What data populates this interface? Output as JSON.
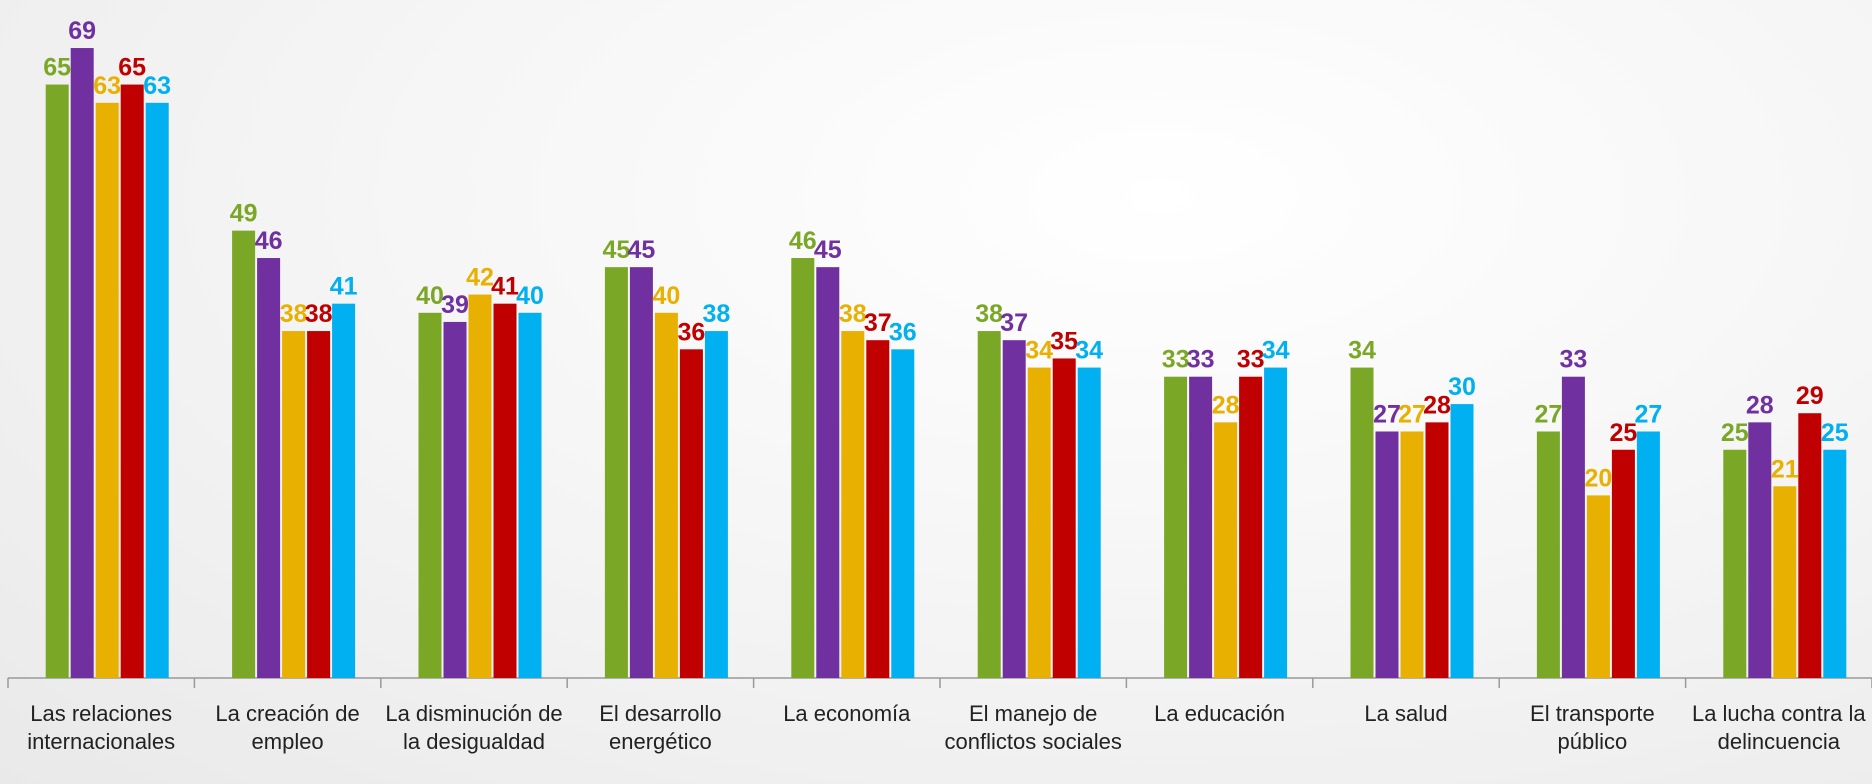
{
  "chart_data": {
    "type": "bar",
    "categories": [
      "Las relaciones internacionales",
      "La creación de empleo",
      "La disminución de la desigualdad",
      "El desarrollo energético",
      "La economía",
      "El manejo de conflictos sociales",
      "La educación",
      "La salud",
      "El transporte público",
      "La lucha contra la delincuencia"
    ],
    "series": [
      {
        "color": "#7ba726",
        "values": [
          65,
          49,
          40,
          45,
          46,
          38,
          33,
          34,
          27,
          25
        ]
      },
      {
        "color": "#7030a0",
        "values": [
          69,
          46,
          39,
          45,
          45,
          37,
          33,
          27,
          33,
          28
        ]
      },
      {
        "color": "#e8b000",
        "values": [
          63,
          38,
          42,
          40,
          38,
          34,
          28,
          27,
          20,
          21
        ]
      },
      {
        "color": "#c00000",
        "values": [
          65,
          38,
          41,
          36,
          37,
          35,
          33,
          28,
          25,
          29
        ]
      },
      {
        "color": "#00b0f0",
        "values": [
          63,
          41,
          40,
          38,
          36,
          34,
          34,
          30,
          27,
          25
        ]
      }
    ]
  }
}
